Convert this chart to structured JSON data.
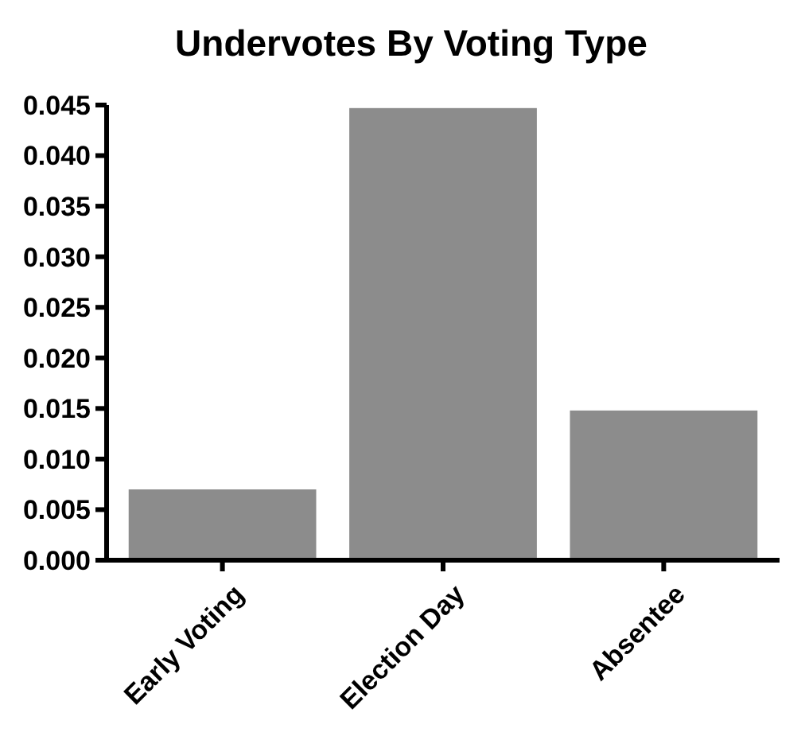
{
  "chart_data": {
    "type": "bar",
    "title": "Undervotes By Voting Type",
    "categories": [
      "Early Voting",
      "Election Day",
      "Absentee"
    ],
    "values": [
      0.007,
      0.0447,
      0.0148
    ],
    "color": "#8c8c8c",
    "ylim": [
      0,
      0.045
    ],
    "yticks": [
      {
        "value": 0,
        "label": "0.000"
      },
      {
        "value": 0.005,
        "label": "0.005"
      },
      {
        "value": 0.01,
        "label": "0.010"
      },
      {
        "value": 0.015,
        "label": "0.015"
      },
      {
        "value": 0.02,
        "label": "0.020"
      },
      {
        "value": 0.025,
        "label": "0.025"
      },
      {
        "value": 0.03,
        "label": "0.030"
      },
      {
        "value": 0.035,
        "label": "0.035"
      },
      {
        "value": 0.04,
        "label": "0.040"
      },
      {
        "value": 0.045,
        "label": "0.045"
      }
    ],
    "grid": false
  }
}
